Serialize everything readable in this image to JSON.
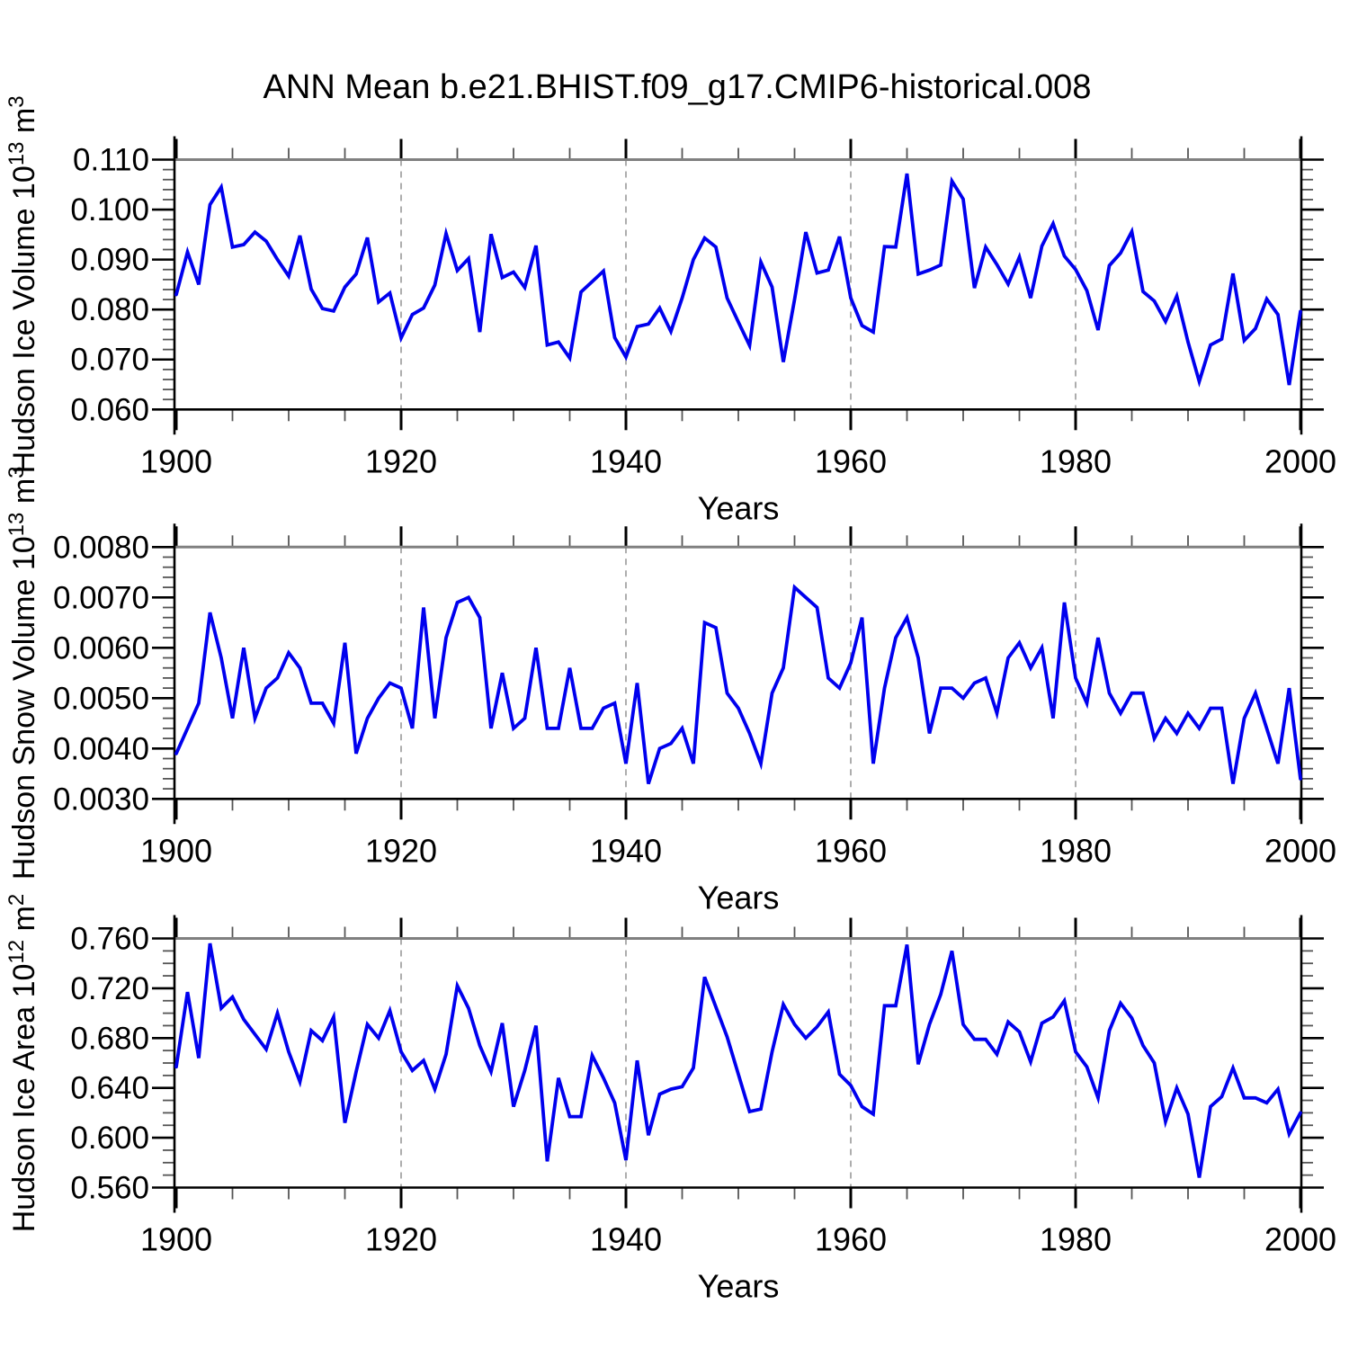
{
  "title": "ANN Mean b.e21.BHIST.f09_g17.CMIP6-historical.008",
  "colors": {
    "line": "#0000ee",
    "frame_top": "#808080",
    "frame": "#000000",
    "minor_tick": "#555555",
    "grid": "#999999",
    "text": "#000000"
  },
  "xlabel": "Years",
  "x_start": 1900,
  "x_end": 2000,
  "xtick_labels": [
    "1900",
    "1920",
    "1940",
    "1960",
    "1980",
    "2000"
  ],
  "xticks": [
    1900,
    1920,
    1940,
    1960,
    1980,
    2000
  ],
  "x_minor_step": 5,
  "grid_years": [
    1920,
    1940,
    1960,
    1980
  ],
  "chart_data": [
    {
      "type": "line",
      "ylabel_parts": [
        {
          "t": "Hudson Ice Volume 10"
        },
        {
          "sup": "13"
        },
        {
          "t": " m"
        },
        {
          "sup": "3"
        }
      ],
      "ylim": [
        0.06,
        0.11
      ],
      "ytick_values": [
        0.06,
        0.07,
        0.08,
        0.09,
        0.1,
        0.11
      ],
      "ytick_labels": [
        "0.060",
        "0.070",
        "0.080",
        "0.090",
        "0.100",
        "0.110"
      ],
      "y_minor_step": 0.002,
      "x_step": 1,
      "values": [
        0.083,
        0.0915,
        0.085,
        0.101,
        0.1045,
        0.0925,
        0.093,
        0.0955,
        0.0937,
        0.09,
        0.0867,
        0.0948,
        0.0841,
        0.0802,
        0.0797,
        0.0845,
        0.0871,
        0.0944,
        0.0815,
        0.0833,
        0.0743,
        0.079,
        0.0803,
        0.0849,
        0.0952,
        0.0878,
        0.0902,
        0.0755,
        0.0951,
        0.0864,
        0.0875,
        0.0844,
        0.0928,
        0.0729,
        0.0735,
        0.0703,
        0.0835,
        0.0856,
        0.0877,
        0.0744,
        0.0705,
        0.0766,
        0.0771,
        0.0803,
        0.0756,
        0.0823,
        0.09,
        0.0943,
        0.0925,
        0.0823,
        0.0775,
        0.0728,
        0.0895,
        0.0845,
        0.0695,
        0.082,
        0.0955,
        0.0873,
        0.0879,
        0.0946,
        0.0823,
        0.0768,
        0.0755,
        0.0926,
        0.0925,
        0.1072,
        0.0871,
        0.0879,
        0.0889,
        0.1057,
        0.1021,
        0.0843,
        0.0925,
        0.089,
        0.0851,
        0.0905,
        0.0823,
        0.0927,
        0.0972,
        0.0907,
        0.088,
        0.0838,
        0.0759,
        0.0888,
        0.0913,
        0.0956,
        0.0836,
        0.0817,
        0.0776,
        0.0827,
        0.0735,
        0.0656,
        0.0729,
        0.0741,
        0.0872,
        0.0738,
        0.0762,
        0.0821,
        0.079,
        0.0649,
        0.0796
      ]
    },
    {
      "type": "line",
      "ylabel_parts": [
        {
          "t": "Hudson Snow Volume 10"
        },
        {
          "sup": "13"
        },
        {
          "t": " m"
        },
        {
          "sup": "3"
        }
      ],
      "ylim": [
        0.003,
        0.008
      ],
      "ytick_values": [
        0.003,
        0.004,
        0.005,
        0.006,
        0.007,
        0.008
      ],
      "ytick_labels": [
        "0.0030",
        "0.0040",
        "0.0050",
        "0.0060",
        "0.0070",
        "0.0080"
      ],
      "y_minor_step": 0.0002,
      "x_step": 1,
      "values": [
        0.0039,
        0.0044,
        0.0049,
        0.0067,
        0.0058,
        0.0046,
        0.006,
        0.0046,
        0.0052,
        0.0054,
        0.0059,
        0.0056,
        0.0049,
        0.0049,
        0.0045,
        0.0061,
        0.0039,
        0.0046,
        0.005,
        0.0053,
        0.0052,
        0.0044,
        0.0068,
        0.0046,
        0.0062,
        0.0069,
        0.007,
        0.0066,
        0.0044,
        0.0055,
        0.0044,
        0.0046,
        0.006,
        0.0044,
        0.0044,
        0.0056,
        0.0044,
        0.0044,
        0.0048,
        0.0049,
        0.0037,
        0.0053,
        0.0033,
        0.004,
        0.0041,
        0.0044,
        0.0037,
        0.0065,
        0.0064,
        0.0051,
        0.0048,
        0.0043,
        0.0037,
        0.0051,
        0.0056,
        0.0072,
        0.007,
        0.0068,
        0.0054,
        0.0052,
        0.0057,
        0.0066,
        0.0037,
        0.0052,
        0.0062,
        0.0066,
        0.0058,
        0.0043,
        0.0052,
        0.0052,
        0.005,
        0.0053,
        0.0054,
        0.0047,
        0.0058,
        0.0061,
        0.0056,
        0.006,
        0.0046,
        0.0069,
        0.0054,
        0.0049,
        0.0062,
        0.0051,
        0.0047,
        0.0051,
        0.0051,
        0.0042,
        0.0046,
        0.0043,
        0.0047,
        0.0044,
        0.0048,
        0.0048,
        0.0033,
        0.0046,
        0.0051,
        0.0044,
        0.0037,
        0.0052,
        0.0034
      ]
    },
    {
      "type": "line",
      "ylabel_parts": [
        {
          "t": "Hudson Ice Area 10"
        },
        {
          "sup": "12"
        },
        {
          "t": " m"
        },
        {
          "sup": "2"
        }
      ],
      "ylim": [
        0.56,
        0.76
      ],
      "ytick_values": [
        0.56,
        0.6,
        0.64,
        0.68,
        0.72,
        0.76
      ],
      "ytick_labels": [
        "0.560",
        "0.600",
        "0.640",
        "0.680",
        "0.720",
        "0.760"
      ],
      "y_minor_step": 0.01,
      "x_step": 1,
      "values": [
        0.657,
        0.717,
        0.664,
        0.756,
        0.704,
        0.713,
        0.695,
        0.683,
        0.671,
        0.7,
        0.669,
        0.645,
        0.686,
        0.678,
        0.697,
        0.612,
        0.653,
        0.691,
        0.68,
        0.702,
        0.669,
        0.654,
        0.662,
        0.639,
        0.667,
        0.722,
        0.704,
        0.674,
        0.653,
        0.692,
        0.625,
        0.654,
        0.69,
        0.581,
        0.648,
        0.617,
        0.617,
        0.666,
        0.648,
        0.628,
        0.582,
        0.662,
        0.602,
        0.635,
        0.639,
        0.641,
        0.656,
        0.729,
        0.705,
        0.681,
        0.651,
        0.621,
        0.623,
        0.669,
        0.707,
        0.691,
        0.68,
        0.689,
        0.701,
        0.651,
        0.642,
        0.625,
        0.619,
        0.706,
        0.706,
        0.755,
        0.659,
        0.691,
        0.715,
        0.75,
        0.691,
        0.679,
        0.679,
        0.667,
        0.693,
        0.685,
        0.661,
        0.692,
        0.697,
        0.71,
        0.669,
        0.657,
        0.632,
        0.686,
        0.708,
        0.696,
        0.674,
        0.66,
        0.613,
        0.64,
        0.619,
        0.568,
        0.625,
        0.633,
        0.656,
        0.632,
        0.632,
        0.628,
        0.639,
        0.603,
        0.62
      ]
    }
  ]
}
